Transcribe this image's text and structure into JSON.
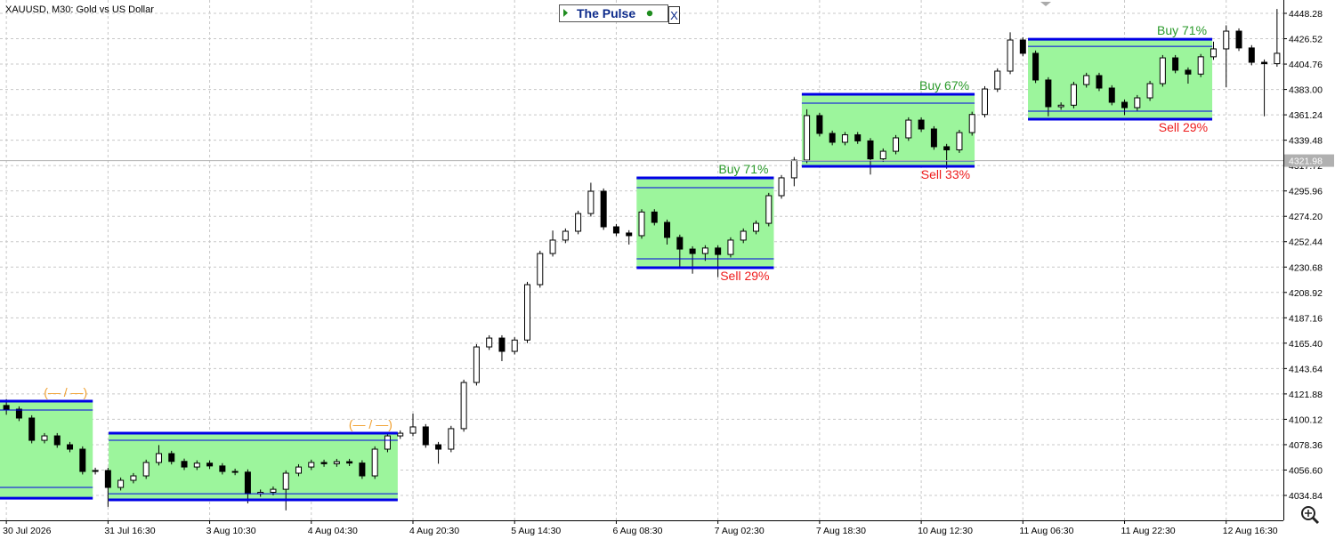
{
  "chart_data": {
    "type": "candlestick",
    "title": "XAUUSD, M30:  Gold vs US Dollar",
    "widget": {
      "title": "The Pulse",
      "close": "X"
    },
    "current_price": {
      "value": 4321.98,
      "label": "4321.98"
    },
    "ylim": [
      4013.48,
      4459.72
    ],
    "yticks": [
      4448.28,
      4426.52,
      4404.76,
      {
        "value": 4383,
        "label": "4383.00"
      },
      4361.24,
      4339.48,
      4317.72,
      4295.96,
      {
        "value": 4274.2,
        "label": "4274.20"
      },
      4252.44,
      4230.68,
      4208.92,
      4187.16,
      {
        "value": 4165.4,
        "label": "4165.40"
      },
      4143.64,
      4121.88,
      4100.12,
      4078.36,
      {
        "value": 4056.6,
        "label": "4056.60"
      },
      4034.84
    ],
    "grid": true,
    "up_color": "#ffffff",
    "down_color": "#000000",
    "zone_fill": "#9cf59c",
    "zone_border": "#0000e6",
    "categories": [
      "30 Jul 2026",
      null,
      null,
      null,
      null,
      null,
      null,
      null,
      "31 Jul 16:30",
      null,
      null,
      null,
      null,
      null,
      null,
      null,
      "3 Aug 10:30",
      null,
      null,
      null,
      null,
      null,
      null,
      null,
      "4 Aug 04:30",
      null,
      null,
      null,
      null,
      null,
      null,
      null,
      "4 Aug 20:30",
      null,
      null,
      null,
      null,
      null,
      null,
      null,
      "5 Aug 14:30",
      null,
      null,
      null,
      null,
      null,
      null,
      null,
      "6 Aug 08:30",
      null,
      null,
      null,
      null,
      null,
      null,
      null,
      "7 Aug 02:30",
      null,
      null,
      null,
      null,
      null,
      null,
      null,
      "7 Aug 18:30",
      null,
      null,
      null,
      null,
      null,
      null,
      null,
      "10 Aug 12:30",
      null,
      null,
      null,
      null,
      null,
      null,
      null,
      "11 Aug 06:30",
      null,
      null,
      null,
      null,
      null,
      null,
      null,
      "11 Aug 22:30",
      null,
      null,
      null,
      null,
      null,
      null,
      null,
      "12 Aug 16:30",
      null,
      null,
      null,
      null
    ],
    "open": [
      4112.0,
      4108.8,
      4101.2,
      4082.1,
      4085.9,
      4078.3,
      4074.5,
      4055.4,
      4056.2,
      4041.7,
      4047.8,
      4051.6,
      4063.1,
      4070.7,
      4064.0,
      4059.2,
      4062.5,
      4060.1,
      4055.4,
      4054.8,
      4036.3,
      4037.5,
      4040.1,
      4053.9,
      4059.2,
      4063.1,
      4062.0,
      4063.8,
      4062.6,
      4051.6,
      4074.5,
      4085.9,
      4088.2,
      4093.6,
      4078.3,
      4074.5,
      4092.1,
      4131.7,
      4162.2,
      4169.8,
      4158.4,
      4168.1,
      4215.6,
      4242.3,
      4253.8,
      4261.4,
      4276.6,
      4295.7,
      4265.2,
      4259.9,
      4257.6,
      4277.9,
      4269.0,
      4256.1,
      4246.1,
      4242.3,
      4247.0,
      4241.5,
      4253.8,
      4261.4,
      4268.2,
      4291.9,
      4307.2,
      4322.4,
      4360.6,
      4345.3,
      4337.7,
      4344.1,
      4338.9,
      4323.5,
      4330.0,
      4341.5,
      4356.7,
      4349.1,
      4333.9,
      4331.2,
      4346.0,
      4361.5,
      4383.4,
      4398.7,
      4425.4,
      4414.0,
      4391.1,
      4368.2,
      4369.5,
      4387.2,
      4394.9,
      4384.2,
      4372.0,
      4367.4,
      4375.8,
      4388.0,
      4410.1,
      4399.5,
      4396.2,
      4411.0,
      4417.8,
      4433.0,
      4418.6,
      4406.3,
      4405.1
    ],
    "high": [
      4117.5,
      4111.2,
      4103.6,
      4088.3,
      4088.3,
      4080.7,
      4076.9,
      4058.6,
      4058.6,
      4050.2,
      4054.0,
      4065.5,
      4078.0,
      4073.1,
      4066.4,
      4064.9,
      4064.9,
      4062.5,
      4057.8,
      4057.2,
      4039.9,
      4042.5,
      4056.3,
      4061.6,
      4065.5,
      4065.5,
      4066.2,
      4066.2,
      4065.0,
      4076.9,
      4088.3,
      4090.6,
      4105.0,
      4096.0,
      4080.7,
      4094.5,
      4134.1,
      4164.6,
      4172.2,
      4172.2,
      4170.5,
      4218.0,
      4244.7,
      4262.0,
      4263.8,
      4279.0,
      4303.0,
      4298.1,
      4267.6,
      4262.3,
      4280.3,
      4280.3,
      4271.4,
      4258.5,
      4248.5,
      4249.4,
      4249.4,
      4256.2,
      4263.8,
      4270.6,
      4294.3,
      4309.6,
      4325.0,
      4366.0,
      4363.0,
      4347.7,
      4346.5,
      4346.5,
      4341.3,
      4332.4,
      4343.9,
      4359.1,
      4359.1,
      4351.5,
      4336.3,
      4348.4,
      4363.9,
      4385.8,
      4401.1,
      4432.0,
      4427.8,
      4416.4,
      4393.5,
      4371.9,
      4389.6,
      4397.3,
      4397.3,
      4386.6,
      4374.4,
      4378.2,
      4390.4,
      4412.5,
      4412.5,
      4401.9,
      4413.4,
      4424.0,
      4438.0,
      4435.4,
      4421.0,
      4408.7,
      4452.0
    ],
    "low": [
      4104.0,
      4098.6,
      4079.5,
      4079.5,
      4075.7,
      4071.9,
      4052.8,
      4052.8,
      4025.0,
      4039.1,
      4045.2,
      4049.0,
      4060.5,
      4061.4,
      4056.6,
      4056.6,
      4057.5,
      4052.8,
      4052.2,
      4028.0,
      4033.7,
      4034.9,
      4022.0,
      4051.3,
      4056.6,
      4059.4,
      4059.4,
      4060.0,
      4049.0,
      4049.0,
      4071.9,
      4083.3,
      4085.6,
      4075.7,
      4062.0,
      4071.9,
      4089.5,
      4129.1,
      4159.6,
      4150.0,
      4155.8,
      4165.5,
      4213.0,
      4239.7,
      4251.2,
      4258.8,
      4274.0,
      4262.6,
      4257.3,
      4250.0,
      4255.0,
      4266.4,
      4250.0,
      4230.0,
      4225.0,
      4236.0,
      4222.0,
      4238.9,
      4251.2,
      4258.8,
      4265.6,
      4289.3,
      4300.0,
      4319.8,
      4342.7,
      4335.1,
      4335.1,
      4336.3,
      4310.0,
      4320.9,
      4327.4,
      4338.9,
      4346.5,
      4331.3,
      4315.0,
      4328.6,
      4343.4,
      4359.0,
      4380.8,
      4396.1,
      4411.4,
      4388.5,
      4360.0,
      4365.6,
      4366.9,
      4384.6,
      4381.6,
      4369.4,
      4361.0,
      4364.8,
      4373.2,
      4385.4,
      4396.9,
      4388.0,
      4393.6,
      4408.4,
      4385.0,
      4416.0,
      4403.7,
      4360.0,
      4402.5
    ],
    "close": [
      4108.8,
      4101.2,
      4082.1,
      4085.9,
      4078.3,
      4074.5,
      4055.4,
      4056.2,
      4041.7,
      4047.8,
      4051.6,
      4063.1,
      4070.7,
      4064.0,
      4059.2,
      4062.5,
      4060.1,
      4055.4,
      4054.8,
      4036.3,
      4037.5,
      4040.1,
      4053.9,
      4059.2,
      4063.1,
      4062.0,
      4063.8,
      4062.6,
      4051.6,
      4074.5,
      4085.9,
      4088.2,
      4093.6,
      4078.3,
      4074.5,
      4092.1,
      4131.7,
      4162.2,
      4169.8,
      4158.4,
      4168.1,
      4215.6,
      4242.3,
      4253.8,
      4261.4,
      4276.6,
      4295.7,
      4265.2,
      4259.9,
      4257.6,
      4277.9,
      4269.0,
      4256.1,
      4246.1,
      4242.3,
      4247.0,
      4241.5,
      4253.8,
      4261.4,
      4268.2,
      4291.9,
      4307.2,
      4322.4,
      4360.6,
      4345.3,
      4337.7,
      4344.1,
      4338.9,
      4323.5,
      4330.0,
      4341.5,
      4356.7,
      4349.1,
      4333.9,
      4331.2,
      4346.0,
      4361.5,
      4383.4,
      4398.7,
      4425.4,
      4414.0,
      4391.1,
      4368.2,
      4369.5,
      4387.2,
      4394.9,
      4384.2,
      4372.0,
      4367.4,
      4375.8,
      4388.0,
      4410.1,
      4399.5,
      4396.2,
      4411.0,
      4417.8,
      4433.0,
      4418.6,
      4406.3,
      4405.1,
      4414.0
    ],
    "zones": [
      {
        "from": 0,
        "to": 7.3,
        "top": 4115.7,
        "inner_top": 4108.1,
        "inner_bottom": 4041.7,
        "bottom": 4032.5,
        "top_label": "(— / —)",
        "top_label_color": "#f0a030"
      },
      {
        "from": 8.55,
        "to": 31.3,
        "top": 4088.2,
        "inner_top": 4082.1,
        "inner_bottom": 4036.3,
        "bottom": 4031.0,
        "top_label": "(— / —)",
        "top_label_color": "#f0a030"
      },
      {
        "from": 50.1,
        "to": 60.9,
        "top": 4307.2,
        "inner_top": 4298.8,
        "inner_bottom": 4237.7,
        "bottom": 4230.1,
        "top_label": "Buy 71%",
        "top_label_color": "#2a9a2a",
        "bottom_label": "Sell 29%",
        "bottom_label_color": "#ee1c1c"
      },
      {
        "from": 63.1,
        "to": 76.7,
        "top": 4378.9,
        "inner_top": 4371.2,
        "inner_bottom": 4321.7,
        "bottom": 4317.1,
        "top_label": "Buy 67%",
        "top_label_color": "#2a9a2a",
        "bottom_label": "Sell 33%",
        "bottom_label_color": "#ee1c1c"
      },
      {
        "from": 80.9,
        "to": 95.4,
        "top": 4426.1,
        "inner_top": 4420.0,
        "inner_bottom": 4364.4,
        "bottom": 4357.5,
        "top_label": "Buy 71%",
        "top_label_color": "#2a9a2a",
        "bottom_label": "Sell 29%",
        "bottom_label_color": "#ee1c1c"
      }
    ]
  }
}
